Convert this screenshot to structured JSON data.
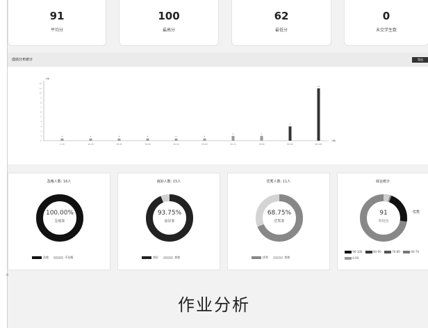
{
  "stats": [
    {
      "value": "91",
      "label": "平均分"
    },
    {
      "value": "100",
      "label": "最高分"
    },
    {
      "value": "62",
      "label": "最低分"
    },
    {
      "value": "0",
      "label": "未交学生数"
    }
  ],
  "chart_panel": {
    "title": "成绩分布统计",
    "export_label": "导出"
  },
  "chart_data": {
    "type": "bar",
    "categories": [
      "0-10",
      "10-20",
      "20-30",
      "30-40",
      "40-50",
      "50-60",
      "60-70",
      "70-80",
      "80-90",
      "90-100"
    ],
    "values": [
      0,
      0,
      0,
      0,
      0,
      0,
      1,
      1,
      3,
      11
    ],
    "ylim": [
      0,
      12
    ],
    "yticks": [
      "0",
      "1",
      "2",
      "3",
      "4",
      "5",
      "6",
      "7",
      "8",
      "9",
      "10",
      "11",
      "12"
    ],
    "ylabel": "人数",
    "xlabel": "分数",
    "data_labels": [
      "0",
      "0",
      "0",
      "0",
      "0",
      "0",
      "1",
      "1",
      "3",
      "11"
    ]
  },
  "cards": [
    {
      "title": "及格人数: 16人",
      "percent": "100.00%",
      "sub": "及格率",
      "fraction": 1.0,
      "legend": [
        "及格",
        "不及格"
      ]
    },
    {
      "title": "良好人数: 15人",
      "percent": "93.75%",
      "sub": "良好率",
      "fraction": 0.9375,
      "legend": [
        "良好",
        "其他"
      ]
    },
    {
      "title": "优秀人数: 11人",
      "percent": "68.75%",
      "sub": "优秀率",
      "fraction": 0.6875,
      "legend": [
        "优秀",
        "其他"
      ]
    },
    {
      "title": "综合统计",
      "percent": "91",
      "sub": "平均分",
      "legend": [
        "90-100",
        "80-90",
        "70-80",
        "60-70",
        "0-60"
      ],
      "callout": "优秀"
    }
  ],
  "caption": "作业分析",
  "colors": {
    "dark": "#111111",
    "mid": "#888888",
    "light": "#d0d0d0"
  }
}
